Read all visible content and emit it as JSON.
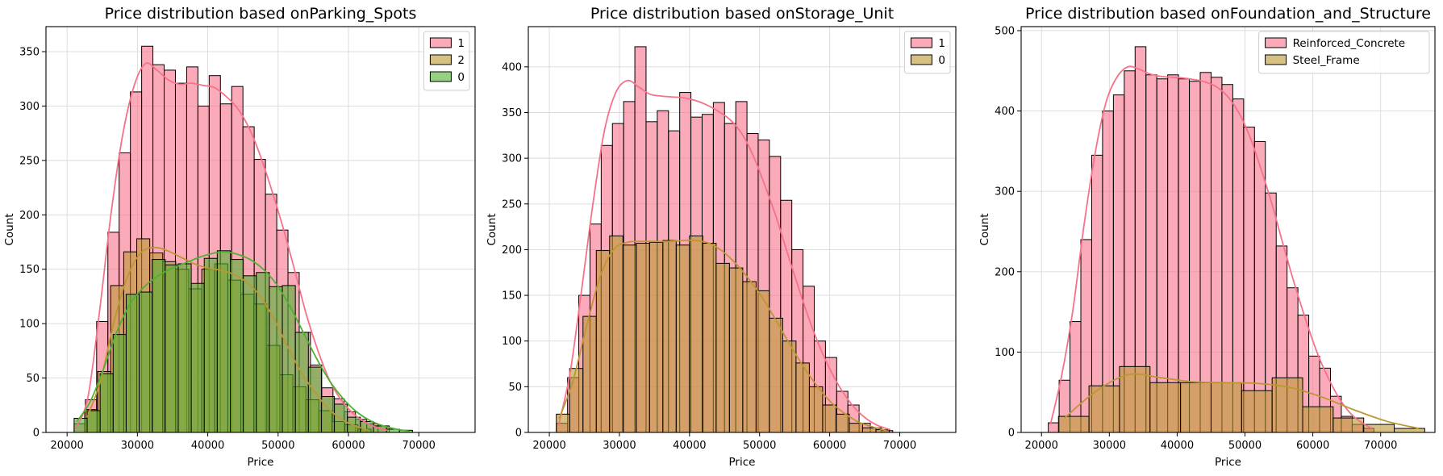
{
  "chart_data": [
    {
      "type": "histogram",
      "title": "Price distribution based onParking_Spots",
      "xlabel": "Price",
      "ylabel": "Count",
      "xlim": [
        17000,
        78000
      ],
      "ylim": [
        0,
        373
      ],
      "xticks": [
        20000,
        30000,
        40000,
        50000,
        60000,
        70000
      ],
      "xtick_labels": [
        "20000",
        "30000",
        "40000",
        "50000",
        "60000",
        "70000"
      ],
      "yticks": [
        0,
        50,
        100,
        150,
        200,
        250,
        300,
        350
      ],
      "ytick_labels": [
        "0",
        "50",
        "100",
        "150",
        "200",
        "250",
        "300",
        "350"
      ],
      "grid": true,
      "legend": "top-right",
      "series": [
        {
          "name": "1",
          "color": "#f77189",
          "bin_start": 21000,
          "bin_width": 1600,
          "values": [
            8,
            30,
            102,
            184,
            257,
            313,
            355,
            338,
            333,
            321,
            336,
            300,
            328,
            302,
            318,
            281,
            251,
            219,
            186,
            147,
            92,
            62,
            41,
            31,
            19,
            12,
            8,
            6
          ],
          "kde": [
            5,
            32,
            110,
            200,
            272,
            318,
            339,
            333,
            324,
            320,
            321,
            319,
            317,
            309,
            298,
            280,
            254,
            222,
            187,
            148,
            108,
            75,
            48,
            30,
            18,
            10,
            5,
            2
          ]
        },
        {
          "name": "2",
          "color": "#bb9832",
          "bin_start": 22500,
          "bin_width": 1850,
          "values": [
            21,
            56,
            135,
            166,
            178,
            165,
            157,
            150,
            132,
            150,
            155,
            140,
            127,
            118,
            80,
            53,
            42,
            30,
            20,
            10,
            7,
            3
          ],
          "kde": [
            14,
            48,
            102,
            143,
            165,
            170,
            167,
            161,
            155,
            151,
            149,
            145,
            137,
            124,
            103,
            78,
            55,
            37,
            22,
            12,
            6,
            2
          ]
        },
        {
          "name": "0",
          "color": "#50b131",
          "bin_start": 21000,
          "bin_width": 1850,
          "values": [
            13,
            20,
            54,
            90,
            127,
            129,
            159,
            154,
            155,
            137,
            160,
            167,
            159,
            144,
            147,
            134,
            135,
            92,
            60,
            33,
            26,
            14,
            10,
            6,
            3,
            2
          ],
          "kde": [
            10,
            28,
            58,
            92,
            118,
            133,
            143,
            150,
            155,
            160,
            164,
            166,
            164,
            159,
            150,
            136,
            116,
            92,
            68,
            47,
            31,
            19,
            11,
            6,
            3,
            1
          ]
        }
      ]
    },
    {
      "type": "histogram",
      "title": "Price distribution based onStorage_Unit",
      "xlabel": "Price",
      "ylabel": "Count",
      "xlim": [
        17000,
        78000
      ],
      "ylim": [
        0,
        444
      ],
      "xticks": [
        20000,
        30000,
        40000,
        50000,
        60000,
        70000
      ],
      "xtick_labels": [
        "20000",
        "30000",
        "40000",
        "50000",
        "60000",
        "70000"
      ],
      "yticks": [
        0,
        50,
        100,
        150,
        200,
        250,
        300,
        350,
        400
      ],
      "ytick_labels": [
        "0",
        "50",
        "100",
        "150",
        "200",
        "250",
        "300",
        "350",
        "400"
      ],
      "grid": true,
      "legend": "top-right",
      "series": [
        {
          "name": "1",
          "color": "#f77189",
          "bin_start": 21000,
          "bin_width": 1600,
          "values": [
            10,
            60,
            150,
            228,
            314,
            338,
            362,
            422,
            340,
            352,
            330,
            372,
            345,
            348,
            361,
            338,
            362,
            327,
            320,
            302,
            254,
            200,
            160,
            100,
            82,
            45,
            30,
            10,
            5,
            2
          ],
          "kde": [
            8,
            65,
            155,
            250,
            330,
            372,
            385,
            378,
            370,
            368,
            367,
            366,
            363,
            358,
            351,
            342,
            327,
            303,
            271,
            236,
            196,
            157,
            120,
            88,
            62,
            41,
            25,
            14,
            7,
            3
          ]
        },
        {
          "name": "0",
          "color": "#bb9832",
          "bin_start": 21000,
          "bin_width": 1900,
          "values": [
            20,
            70,
            127,
            199,
            215,
            205,
            207,
            208,
            210,
            205,
            215,
            207,
            185,
            180,
            165,
            155,
            125,
            100,
            76,
            50,
            30,
            20,
            10,
            5,
            3
          ],
          "kde": [
            15,
            55,
            115,
            170,
            200,
            208,
            209,
            209,
            209,
            210,
            210,
            207,
            198,
            184,
            166,
            145,
            120,
            94,
            70,
            49,
            32,
            20,
            11,
            6,
            2
          ]
        }
      ]
    },
    {
      "type": "histogram",
      "title": "Price distribution based onFoundation_and_Structure",
      "xlabel": "Price",
      "ylabel": "Count",
      "xlim": [
        17000,
        78000
      ],
      "ylim": [
        0,
        505
      ],
      "xticks": [
        20000,
        30000,
        40000,
        50000,
        60000,
        70000
      ],
      "xtick_labels": [
        "20000",
        "30000",
        "40000",
        "50000",
        "60000",
        "70000"
      ],
      "yticks": [
        0,
        100,
        200,
        300,
        400,
        500
      ],
      "ytick_labels": [
        "0",
        "100",
        "200",
        "300",
        "400",
        "500"
      ],
      "grid": true,
      "legend": "top-right",
      "series": [
        {
          "name": "Reinforced_Concrete",
          "color": "#f77189",
          "bin_start": 21000,
          "bin_width": 1600,
          "values": [
            12,
            65,
            138,
            240,
            345,
            400,
            420,
            450,
            480,
            445,
            440,
            445,
            440,
            437,
            448,
            442,
            433,
            415,
            380,
            362,
            298,
            232,
            180,
            146,
            95,
            80,
            45,
            20,
            10,
            5
          ],
          "kde": [
            10,
            70,
            150,
            255,
            345,
            410,
            442,
            455,
            452,
            446,
            443,
            442,
            441,
            439,
            436,
            430,
            418,
            398,
            368,
            328,
            284,
            234,
            186,
            142,
            102,
            70,
            44,
            25,
            13,
            5
          ]
        },
        {
          "name": "Steel_Frame",
          "color": "#bb9832",
          "bin_start": 22500,
          "bin_width": 4500,
          "values": [
            20,
            58,
            82,
            62,
            62,
            62,
            52,
            68,
            32,
            18,
            10,
            5
          ],
          "kde": [
            18,
            52,
            72,
            68,
            63,
            62,
            61,
            56,
            44,
            28,
            14,
            5
          ]
        }
      ]
    }
  ]
}
